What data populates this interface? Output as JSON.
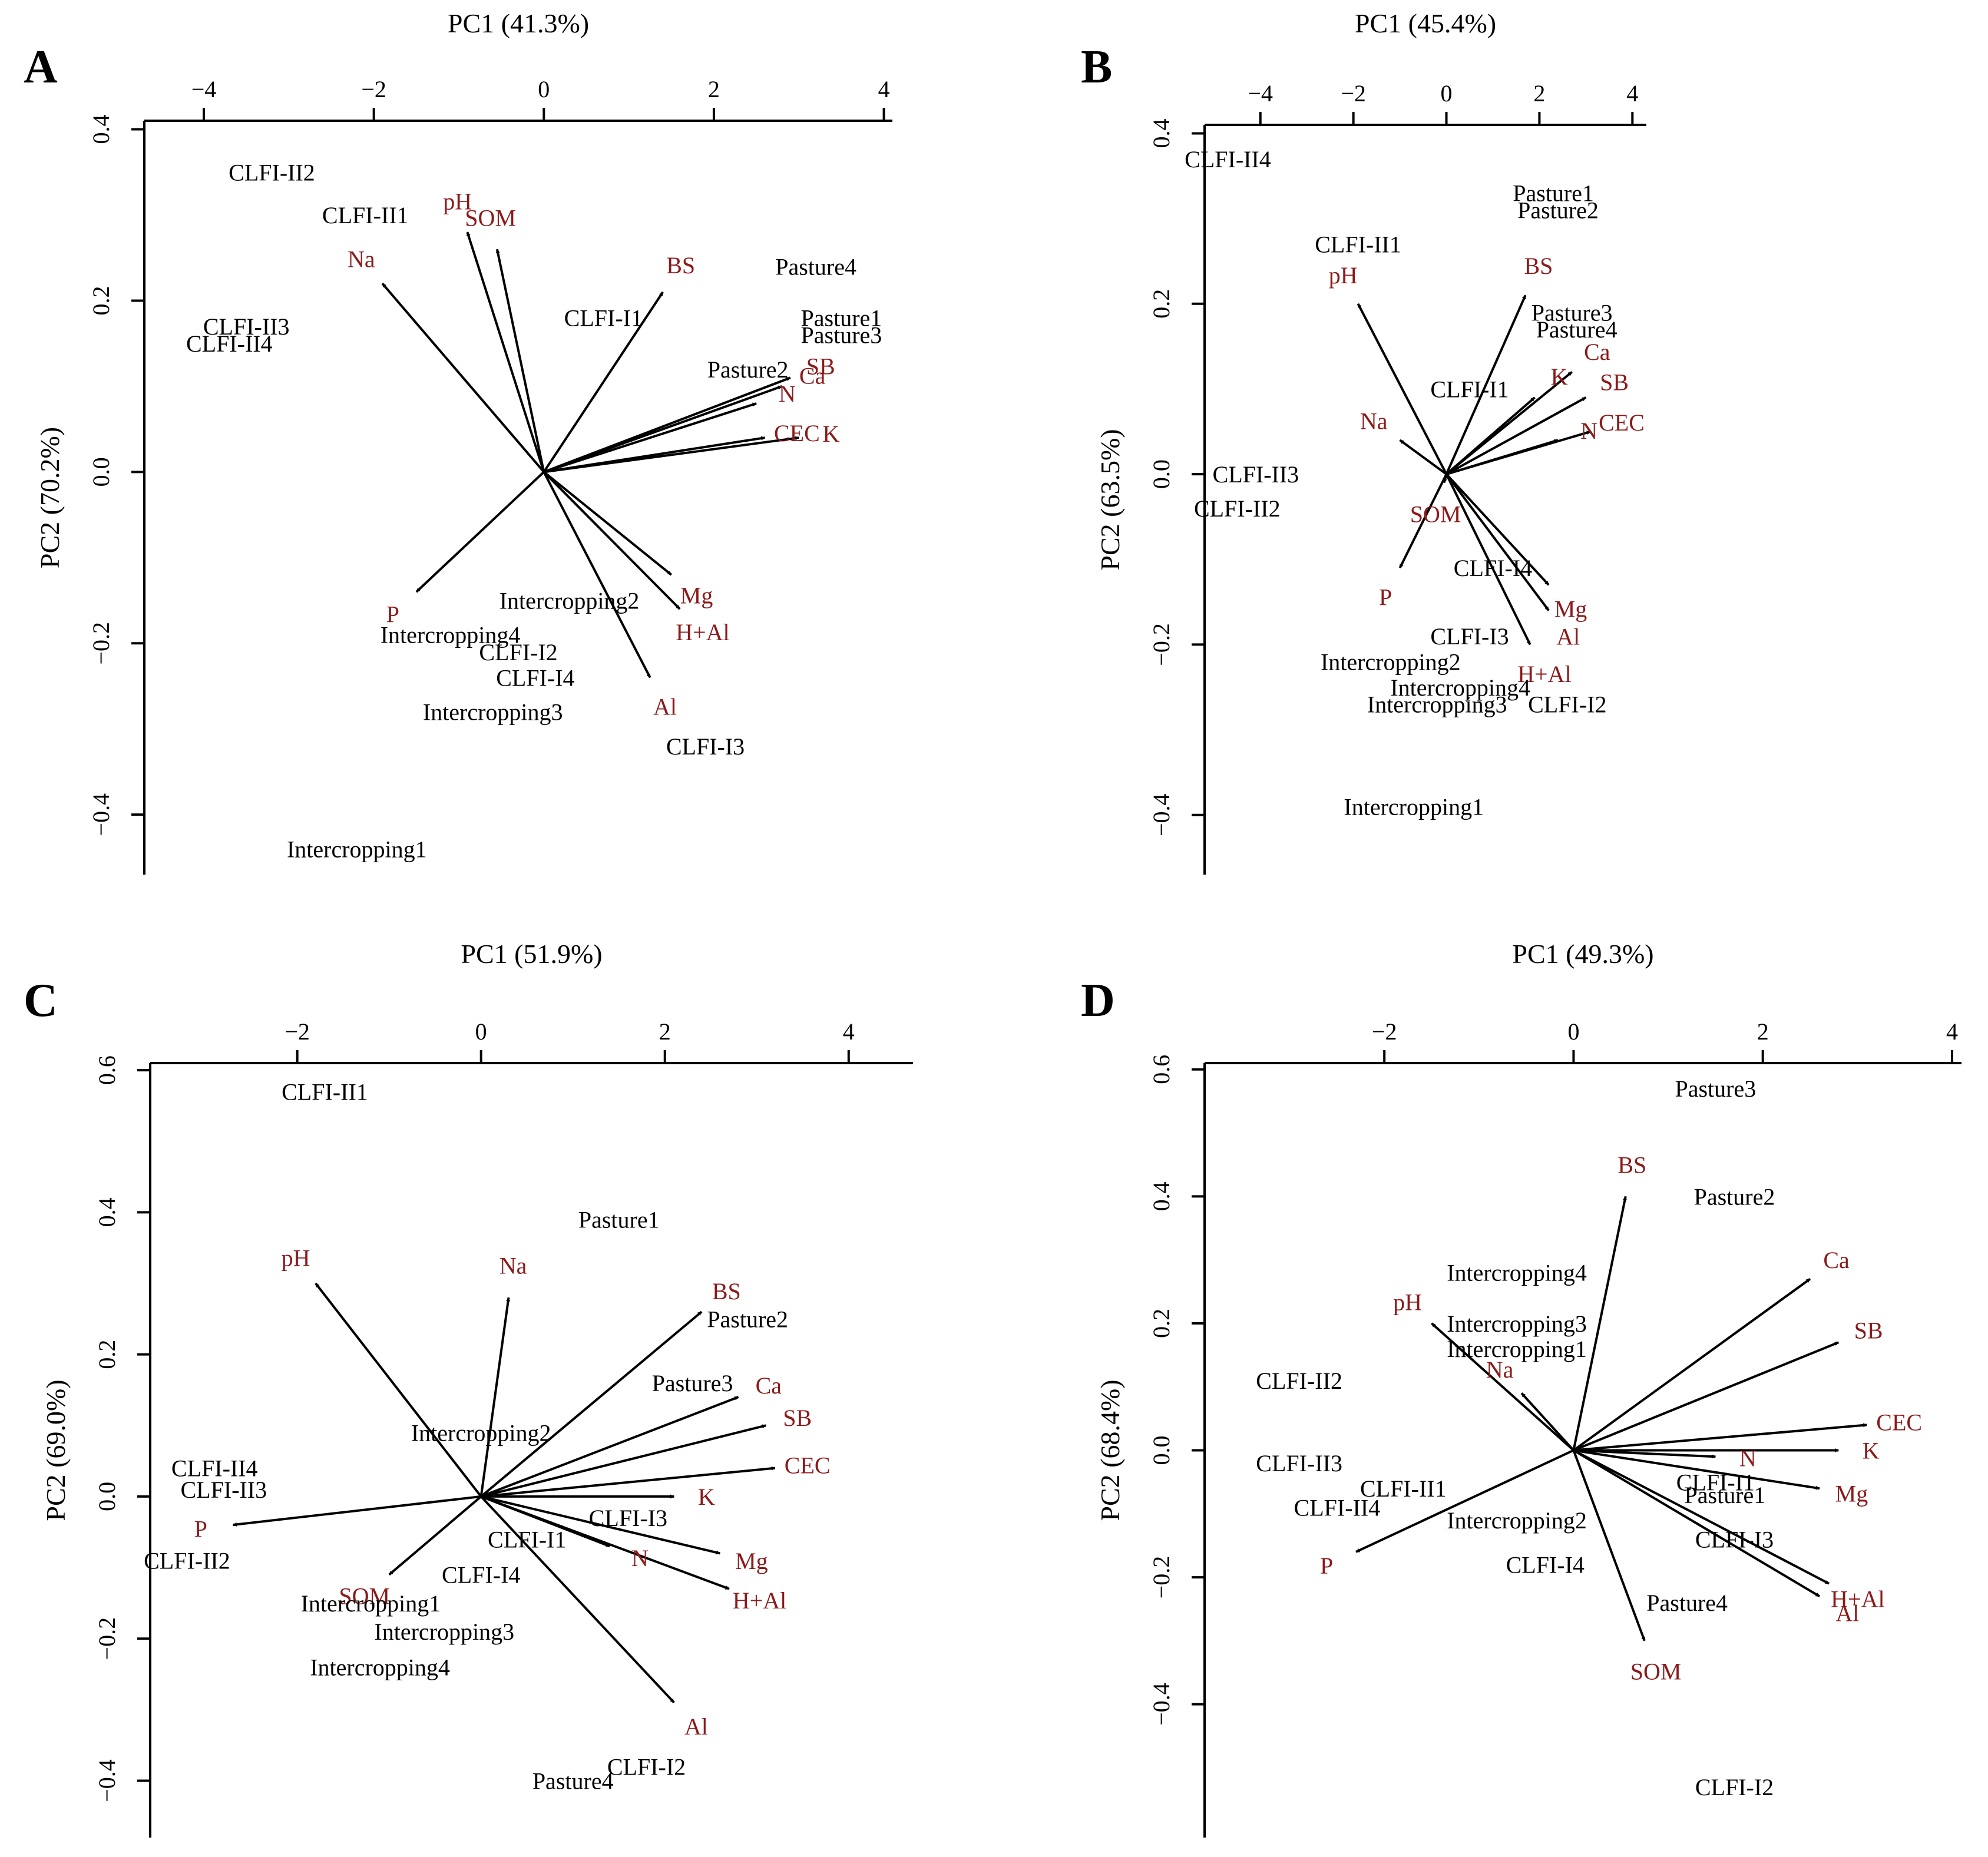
{
  "chart_data": [
    {
      "type": "scatter",
      "panel_label": "A",
      "xlabel": "PC1 (41.3%)",
      "ylabel": "PC2 (70.2%)",
      "xticks": [
        -4,
        -2,
        0,
        2,
        4
      ],
      "yticks": [
        -0.4,
        -0.2,
        0.0,
        0.2,
        0.4
      ],
      "xlim": [
        -4.7,
        4.1
      ],
      "ylim": [
        -0.47,
        0.41
      ],
      "observations": [
        {
          "label": "CLFI-II2",
          "x": -3.2,
          "y": 0.35
        },
        {
          "label": "CLFI-II1",
          "x": -2.1,
          "y": 0.3
        },
        {
          "label": "CLFI-II3",
          "x": -3.5,
          "y": 0.17
        },
        {
          "label": "CLFI-II4",
          "x": -3.7,
          "y": 0.15
        },
        {
          "label": "CLFI-I1",
          "x": 0.7,
          "y": 0.18
        },
        {
          "label": "Pasture4",
          "x": 3.2,
          "y": 0.24
        },
        {
          "label": "Pasture1",
          "x": 3.5,
          "y": 0.18
        },
        {
          "label": "Pasture3",
          "x": 3.5,
          "y": 0.16
        },
        {
          "label": "Pasture2",
          "x": 2.4,
          "y": 0.12
        },
        {
          "label": "Intercropping2",
          "x": 0.3,
          "y": -0.15
        },
        {
          "label": "Intercropping4",
          "x": -1.1,
          "y": -0.19
        },
        {
          "label": "CLFI-I2",
          "x": -0.3,
          "y": -0.21
        },
        {
          "label": "CLFI-I4",
          "x": -0.1,
          "y": -0.24
        },
        {
          "label": "Intercropping3",
          "x": -0.6,
          "y": -0.28
        },
        {
          "label": "CLFI-I3",
          "x": 1.9,
          "y": -0.32
        },
        {
          "label": "Intercropping1",
          "x": -2.2,
          "y": -0.44
        }
      ],
      "variables": [
        {
          "label": "pH",
          "x": -0.9,
          "y": 0.28
        },
        {
          "label": "SOM",
          "x": -0.55,
          "y": 0.26
        },
        {
          "label": "Na",
          "x": -1.9,
          "y": 0.22
        },
        {
          "label": "BS",
          "x": 1.4,
          "y": 0.21
        },
        {
          "label": "SB",
          "x": 2.9,
          "y": 0.11
        },
        {
          "label": "Ca",
          "x": 2.8,
          "y": 0.1
        },
        {
          "label": "N",
          "x": 2.5,
          "y": 0.08
        },
        {
          "label": "K",
          "x": 3.0,
          "y": 0.04
        },
        {
          "label": "CEC",
          "x": 2.6,
          "y": 0.04
        },
        {
          "label": "Mg",
          "x": 1.5,
          "y": -0.12
        },
        {
          "label": "H+Al",
          "x": 1.6,
          "y": -0.16
        },
        {
          "label": "Al",
          "x": 1.25,
          "y": -0.24
        },
        {
          "label": "P",
          "x": -1.5,
          "y": -0.14
        }
      ]
    },
    {
      "type": "scatter",
      "panel_label": "B",
      "xlabel": "PC1 (45.4%)",
      "ylabel": "PC2 (63.5%)",
      "xticks": [
        -4,
        -2,
        0,
        2,
        4
      ],
      "yticks": [
        -0.4,
        -0.2,
        0.0,
        0.2,
        0.4
      ],
      "xlim": [
        -5.2,
        4.3
      ],
      "ylim": [
        -0.47,
        0.41
      ],
      "observations": [
        {
          "label": "CLFI-II4",
          "x": -4.7,
          "y": 0.37
        },
        {
          "label": "Pasture1",
          "x": 2.3,
          "y": 0.33
        },
        {
          "label": "Pasture2",
          "x": 2.4,
          "y": 0.31
        },
        {
          "label": "CLFI-II1",
          "x": -1.9,
          "y": 0.27
        },
        {
          "label": "Pasture3",
          "x": 2.7,
          "y": 0.19
        },
        {
          "label": "Pasture4",
          "x": 2.8,
          "y": 0.17
        },
        {
          "label": "CLFI-I1",
          "x": 0.5,
          "y": 0.1
        },
        {
          "label": "CLFI-II3",
          "x": -4.1,
          "y": 0.0
        },
        {
          "label": "CLFI-II2",
          "x": -4.5,
          "y": -0.04
        },
        {
          "label": "CLFI-I4",
          "x": 1.0,
          "y": -0.11
        },
        {
          "label": "CLFI-I3",
          "x": 0.5,
          "y": -0.19
        },
        {
          "label": "Intercropping2",
          "x": -1.2,
          "y": -0.22
        },
        {
          "label": "Intercropping4",
          "x": 0.3,
          "y": -0.25
        },
        {
          "label": "Intercropping3",
          "x": -0.2,
          "y": -0.27
        },
        {
          "label": "CLFI-I2",
          "x": 2.6,
          "y": -0.27
        },
        {
          "label": "Intercropping1",
          "x": -0.7,
          "y": -0.39
        }
      ],
      "variables": [
        {
          "label": "pH",
          "x": -1.9,
          "y": 0.2
        },
        {
          "label": "BS",
          "x": 1.7,
          "y": 0.21
        },
        {
          "label": "Ca",
          "x": 2.7,
          "y": 0.12
        },
        {
          "label": "SB",
          "x": 3.0,
          "y": 0.09
        },
        {
          "label": "K",
          "x": 1.9,
          "y": 0.09
        },
        {
          "label": "CEC",
          "x": 3.1,
          "y": 0.05
        },
        {
          "label": "N",
          "x": 2.4,
          "y": 0.04
        },
        {
          "label": "Na",
          "x": -1.0,
          "y": 0.04
        },
        {
          "label": "SOM",
          "x": -0.05,
          "y": -0.01
        },
        {
          "label": "Mg",
          "x": 2.2,
          "y": -0.13
        },
        {
          "label": "Al",
          "x": 2.2,
          "y": -0.16
        },
        {
          "label": "H+Al",
          "x": 1.8,
          "y": -0.2
        },
        {
          "label": "P",
          "x": -1.0,
          "y": -0.11
        }
      ]
    },
    {
      "type": "scatter",
      "panel_label": "C",
      "xlabel": "PC1 (51.9%)",
      "ylabel": "PC2 (69.0%)",
      "xticks": [
        -2,
        0,
        2,
        4
      ],
      "yticks": [
        -0.4,
        -0.2,
        0.0,
        0.2,
        0.4,
        0.6
      ],
      "xlim": [
        -3.6,
        4.7
      ],
      "ylim": [
        -0.48,
        0.61
      ],
      "observations": [
        {
          "label": "CLFI-II1",
          "x": -1.7,
          "y": 0.57
        },
        {
          "label": "Pasture1",
          "x": 1.5,
          "y": 0.39
        },
        {
          "label": "Pasture2",
          "x": 2.9,
          "y": 0.25
        },
        {
          "label": "Pasture3",
          "x": 2.3,
          "y": 0.16
        },
        {
          "label": "Intercropping2",
          "x": 0.0,
          "y": 0.09
        },
        {
          "label": "CLFI-II4",
          "x": -2.9,
          "y": 0.04
        },
        {
          "label": "CLFI-II3",
          "x": -2.8,
          "y": 0.01
        },
        {
          "label": "CLFI-II2",
          "x": -3.2,
          "y": -0.09
        },
        {
          "label": "CLFI-I3",
          "x": 1.6,
          "y": -0.03
        },
        {
          "label": "CLFI-I1",
          "x": 0.5,
          "y": -0.06
        },
        {
          "label": "CLFI-I4",
          "x": 0.0,
          "y": -0.11
        },
        {
          "label": "Intercropping1",
          "x": -1.2,
          "y": -0.15
        },
        {
          "label": "Intercropping3",
          "x": -0.4,
          "y": -0.19
        },
        {
          "label": "Intercropping4",
          "x": -1.1,
          "y": -0.24
        },
        {
          "label": "CLFI-I2",
          "x": 1.8,
          "y": -0.38
        },
        {
          "label": "Pasture4",
          "x": 1.0,
          "y": -0.4
        }
      ],
      "variables": [
        {
          "label": "pH",
          "x": -1.8,
          "y": 0.3
        },
        {
          "label": "Na",
          "x": 0.3,
          "y": 0.28
        },
        {
          "label": "BS",
          "x": 2.4,
          "y": 0.26
        },
        {
          "label": "Ca",
          "x": 2.8,
          "y": 0.14
        },
        {
          "label": "SB",
          "x": 3.1,
          "y": 0.1
        },
        {
          "label": "CEC",
          "x": 3.2,
          "y": 0.04
        },
        {
          "label": "K",
          "x": 2.1,
          "y": 0.0
        },
        {
          "label": "N",
          "x": 1.4,
          "y": -0.07
        },
        {
          "label": "Mg",
          "x": 2.6,
          "y": -0.08
        },
        {
          "label": "H+Al",
          "x": 2.7,
          "y": -0.13
        },
        {
          "label": "Al",
          "x": 2.1,
          "y": -0.29
        },
        {
          "label": "SOM",
          "x": -1.0,
          "y": -0.11
        },
        {
          "label": "P",
          "x": -2.7,
          "y": -0.04
        }
      ]
    },
    {
      "type": "scatter",
      "panel_label": "D",
      "xlabel": "PC1 (49.3%)",
      "ylabel": "PC2 (68.4%)",
      "xticks": [
        -2,
        0,
        2,
        4
      ],
      "yticks": [
        -0.4,
        -0.2,
        0.0,
        0.2,
        0.4,
        0.6
      ],
      "xlim": [
        -3.9,
        4.1
      ],
      "ylim": [
        -0.61,
        0.61
      ],
      "observations": [
        {
          "label": "Pasture3",
          "x": 1.5,
          "y": 0.57
        },
        {
          "label": "Pasture2",
          "x": 1.7,
          "y": 0.4
        },
        {
          "label": "Intercropping4",
          "x": -0.6,
          "y": 0.28
        },
        {
          "label": "Intercropping3",
          "x": -0.6,
          "y": 0.2
        },
        {
          "label": "Intercropping1",
          "x": -0.6,
          "y": 0.16
        },
        {
          "label": "CLFI-II2",
          "x": -2.9,
          "y": 0.11
        },
        {
          "label": "CLFI-II3",
          "x": -2.9,
          "y": -0.02
        },
        {
          "label": "CLFI-II1",
          "x": -1.8,
          "y": -0.06
        },
        {
          "label": "CLFI-II4",
          "x": -2.5,
          "y": -0.09
        },
        {
          "label": "CLFI-I1",
          "x": 1.5,
          "y": -0.05
        },
        {
          "label": "Pasture1",
          "x": 1.6,
          "y": -0.07
        },
        {
          "label": "Intercropping2",
          "x": -0.6,
          "y": -0.11
        },
        {
          "label": "CLFI-I3",
          "x": 1.7,
          "y": -0.14
        },
        {
          "label": "CLFI-I4",
          "x": -0.3,
          "y": -0.18
        },
        {
          "label": "Pasture4",
          "x": 1.2,
          "y": -0.24
        },
        {
          "label": "CLFI-I2",
          "x": 1.7,
          "y": -0.53
        }
      ],
      "variables": [
        {
          "label": "BS",
          "x": 0.55,
          "y": 0.4
        },
        {
          "label": "Ca",
          "x": 2.5,
          "y": 0.27
        },
        {
          "label": "SB",
          "x": 2.8,
          "y": 0.17
        },
        {
          "label": "CEC",
          "x": 3.1,
          "y": 0.04
        },
        {
          "label": "K",
          "x": 2.8,
          "y": 0.0
        },
        {
          "label": "N",
          "x": 1.5,
          "y": -0.01
        },
        {
          "label": "Mg",
          "x": 2.6,
          "y": -0.06
        },
        {
          "label": "H+Al",
          "x": 2.7,
          "y": -0.21
        },
        {
          "label": "Al",
          "x": 2.6,
          "y": -0.23
        },
        {
          "label": "pH",
          "x": -1.5,
          "y": 0.2
        },
        {
          "label": "Na",
          "x": -0.55,
          "y": 0.09
        },
        {
          "label": "SOM",
          "x": 0.75,
          "y": -0.3
        },
        {
          "label": "P",
          "x": -2.3,
          "y": -0.16
        }
      ]
    }
  ]
}
